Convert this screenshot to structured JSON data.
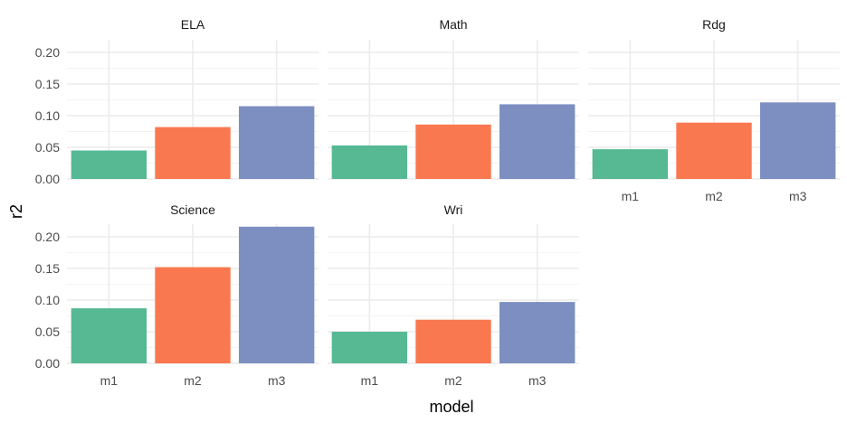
{
  "chart_data": {
    "type": "bar",
    "xlabel": "model",
    "ylabel": "r2",
    "categories": [
      "m1",
      "m2",
      "m3"
    ],
    "ylim": [
      0,
      0.22
    ],
    "yticks": [
      "0.00",
      "0.05",
      "0.10",
      "0.15",
      "0.20"
    ],
    "ytick_values": [
      0,
      0.05,
      0.1,
      0.15,
      0.2
    ],
    "colors": [
      "#56b994",
      "#fa7850",
      "#7d8fc1"
    ],
    "grid": true,
    "facets": [
      {
        "name": "ELA",
        "values": [
          0.045,
          0.082,
          0.115
        ]
      },
      {
        "name": "Math",
        "values": [
          0.053,
          0.086,
          0.118
        ]
      },
      {
        "name": "Rdg",
        "values": [
          0.047,
          0.089,
          0.121
        ]
      },
      {
        "name": "Science",
        "values": [
          0.087,
          0.152,
          0.216
        ]
      },
      {
        "name": "Wri",
        "values": [
          0.05,
          0.069,
          0.097
        ]
      }
    ]
  }
}
